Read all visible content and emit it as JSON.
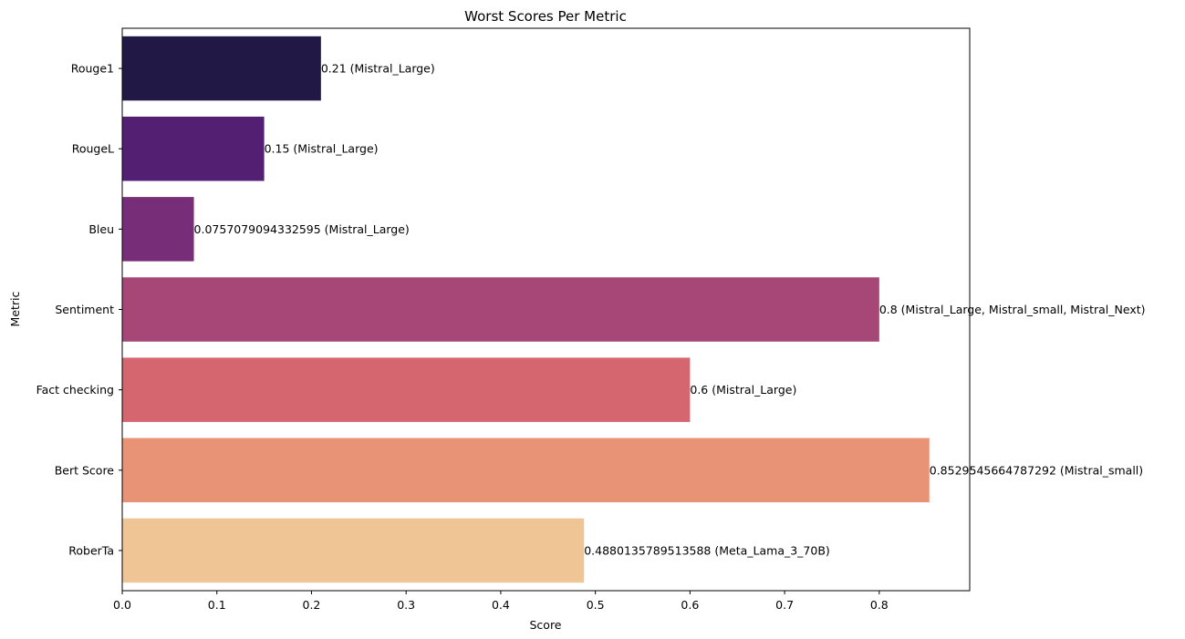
{
  "chart_data": {
    "type": "bar",
    "orientation": "horizontal",
    "title": "Worst Scores Per Metric",
    "xlabel": "Score",
    "ylabel": "Metric",
    "xlim": [
      0,
      0.8956
    ],
    "xticks": [
      "0.0",
      "0.1",
      "0.2",
      "0.3",
      "0.4",
      "0.5",
      "0.6",
      "0.7",
      "0.8"
    ],
    "grid": false,
    "categories": [
      "Rouge1",
      "RougeL",
      "Bleu",
      "Sentiment",
      "Fact checking",
      "Bert Score",
      "RoberTa"
    ],
    "values": [
      0.21,
      0.15,
      0.0757079094332595,
      0.8,
      0.6,
      0.8529545664787292,
      0.4880135789513588
    ],
    "data_labels": [
      "0.21 (Mistral_Large)",
      "0.15 (Mistral_Large)",
      "0.0757079094332595 (Mistral_Large)",
      "0.8 (Mistral_Large, Mistral_small, Mistral_Next)",
      "0.6 (Mistral_Large)",
      "0.8529545664787292 (Mistral_small)",
      "0.4880135789513588 (Meta_Lama_3_70B)"
    ],
    "colors": [
      "#221845",
      "#521f72",
      "#772d77",
      "#a64777",
      "#d56670",
      "#e89375",
      "#efc596"
    ]
  }
}
